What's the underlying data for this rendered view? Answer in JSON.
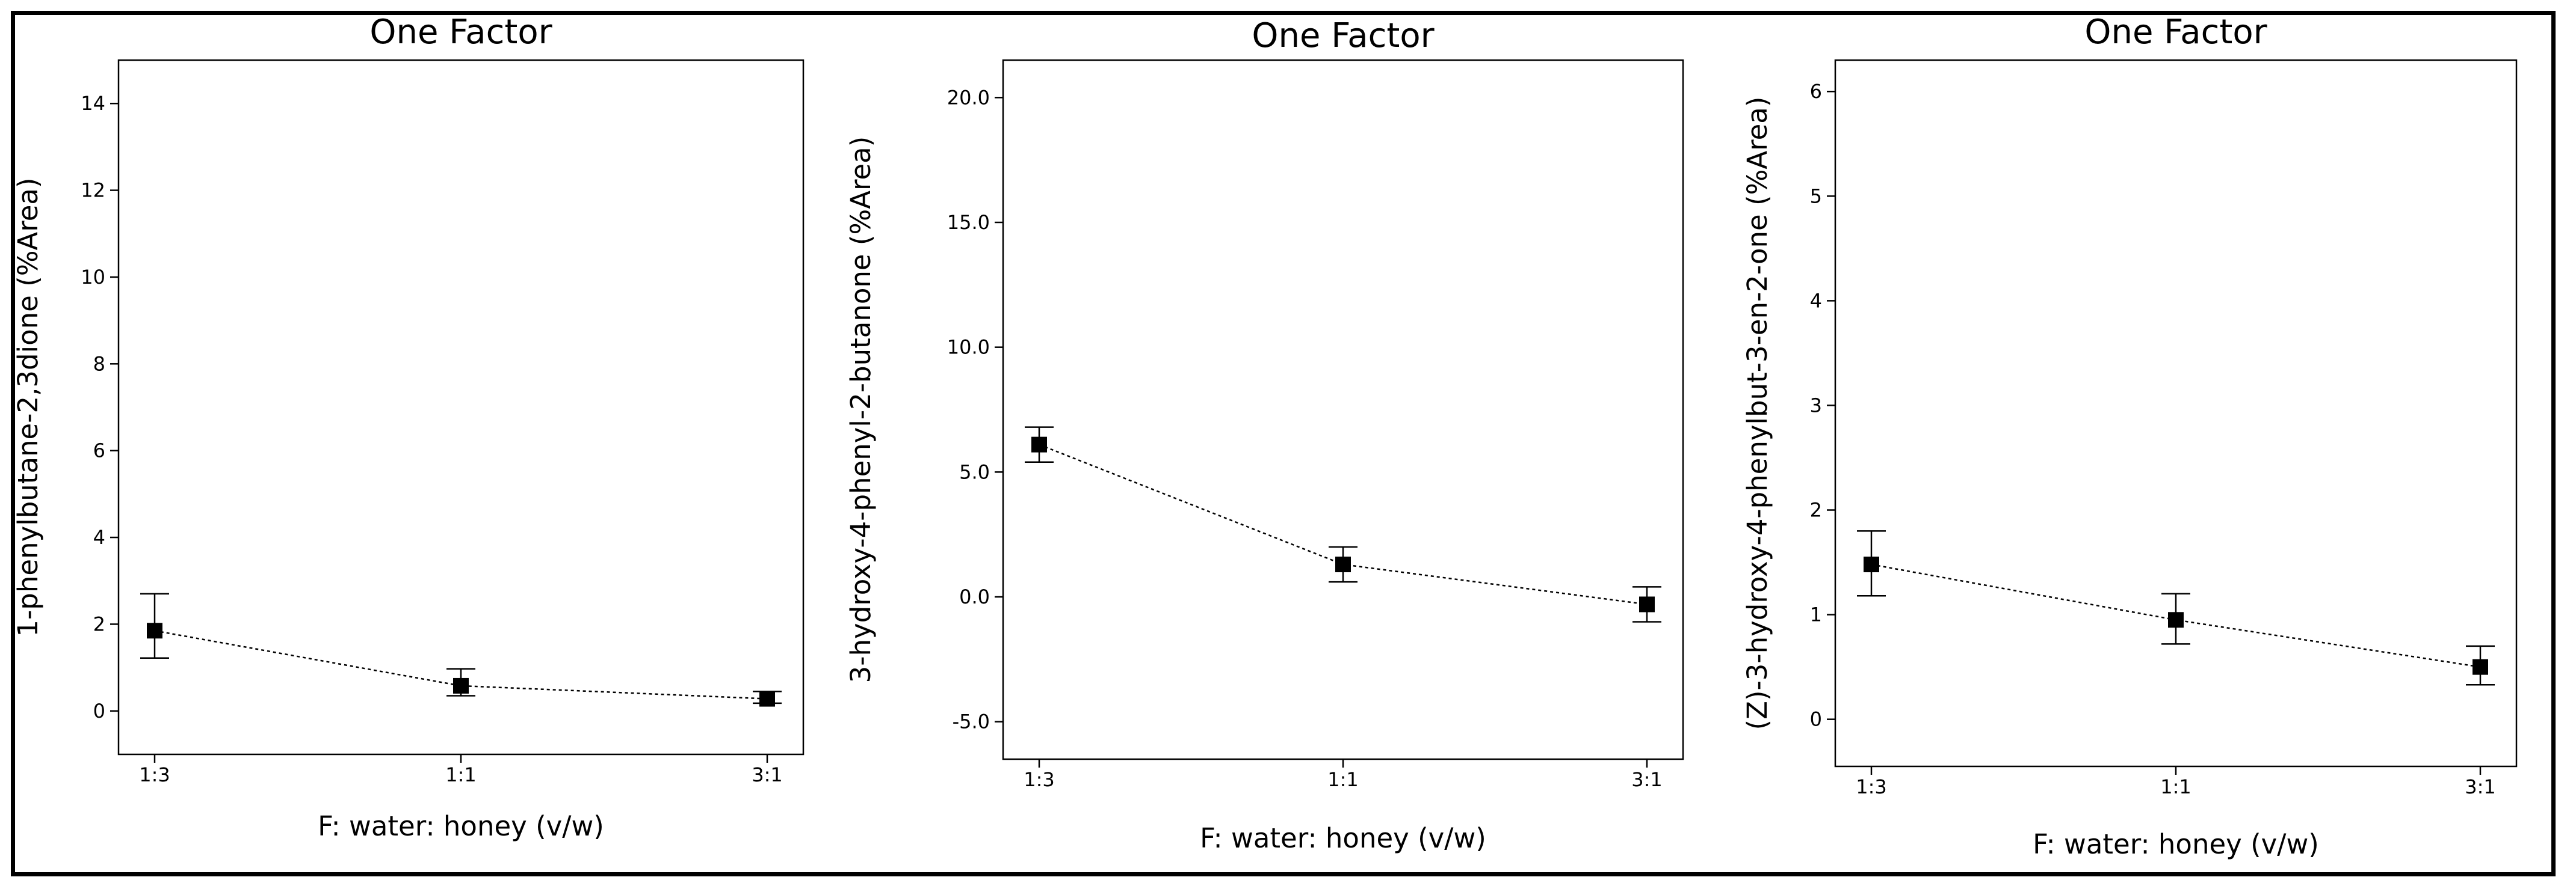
{
  "chart_data": [
    {
      "type": "line",
      "title": "One Factor",
      "xlabel": "F: water: honey  (v/w)",
      "ylabel": "1-phenylbutane-2,3dione (%Area)",
      "categories": [
        "1:3",
        "1:1",
        "3:1"
      ],
      "values": [
        1.85,
        0.58,
        0.28
      ],
      "error_low": [
        1.22,
        0.35,
        0.18
      ],
      "error_high": [
        2.7,
        0.97,
        0.45
      ],
      "ylim": [
        -1.0,
        15.0
      ],
      "yticks": [
        0,
        2,
        4,
        6,
        8,
        10,
        12,
        14
      ],
      "ytick_labels": [
        "0",
        "2",
        "4",
        "6",
        "8",
        "10",
        "12",
        "14"
      ],
      "line_style": "dotted",
      "marker": "square",
      "color": "#000000"
    },
    {
      "type": "line",
      "title": "One Factor",
      "xlabel": "F: water: honey  (v/w)",
      "ylabel": "3-hydroxy-4-phenyl-2-butanone (%Area)",
      "categories": [
        "1:3",
        "1:1",
        "3:1"
      ],
      "values": [
        6.1,
        1.3,
        -0.3
      ],
      "error_low": [
        5.4,
        0.6,
        -1.0
      ],
      "error_high": [
        6.8,
        2.0,
        0.4
      ],
      "ylim": [
        -6.5,
        21.5
      ],
      "yticks": [
        -5.0,
        0.0,
        5.0,
        10.0,
        15.0,
        20.0
      ],
      "ytick_labels": [
        "-5.0",
        "0.0",
        "5.0",
        "10.0",
        "15.0",
        "20.0"
      ],
      "line_style": "dotted",
      "marker": "square",
      "color": "#000000"
    },
    {
      "type": "line",
      "title": "One Factor",
      "xlabel": "F: water: honey  (v/w)",
      "ylabel": "(Z)-3-hydroxy-4-phenylbut-3-en-2-one (%Area)",
      "categories": [
        "1:3",
        "1:1",
        "3:1"
      ],
      "values": [
        1.48,
        0.95,
        0.5
      ],
      "error_low": [
        1.18,
        0.72,
        0.33
      ],
      "error_high": [
        1.8,
        1.2,
        0.7
      ],
      "ylim": [
        -0.45,
        6.3
      ],
      "yticks": [
        0,
        1,
        2,
        3,
        4,
        5,
        6
      ],
      "ytick_labels": [
        "0",
        "1",
        "2",
        "3",
        "4",
        "5",
        "6"
      ],
      "line_style": "dotted",
      "marker": "square",
      "color": "#000000"
    }
  ]
}
